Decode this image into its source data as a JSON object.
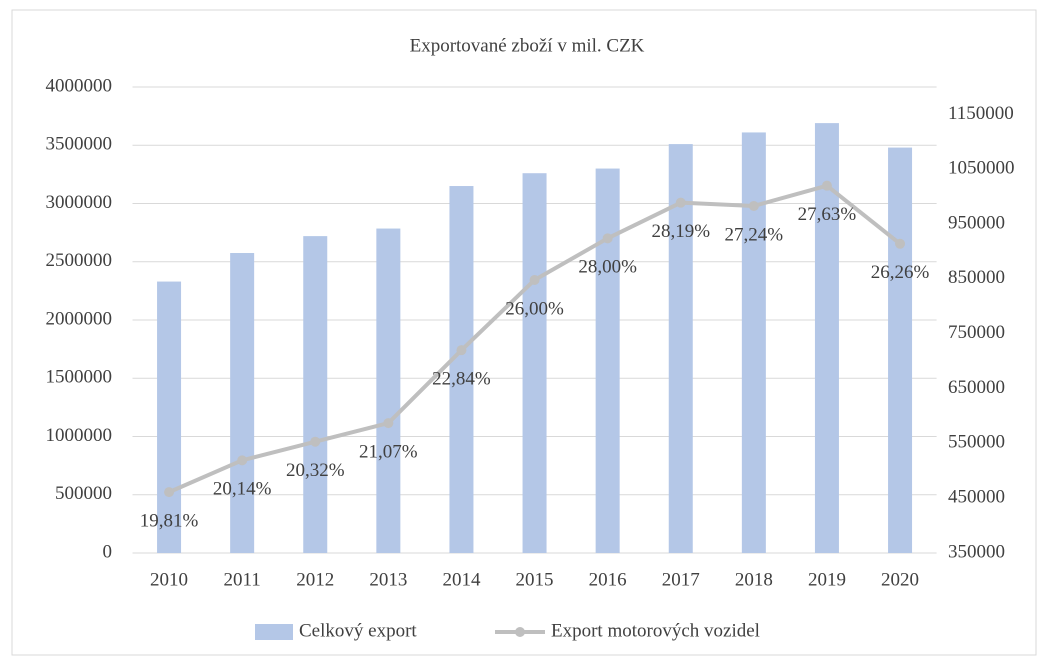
{
  "chart_data": {
    "type": "bar_line",
    "title": "Exportované zboží v mil. CZK",
    "categories": [
      "2010",
      "2011",
      "2012",
      "2013",
      "2014",
      "2015",
      "2016",
      "2017",
      "2018",
      "2019",
      "2020"
    ],
    "series": [
      {
        "name": "Celkový export",
        "type": "bar",
        "color": "#b4c7e7",
        "values": [
          2330000,
          2575000,
          2720000,
          2785000,
          3150000,
          3260000,
          3300000,
          3510000,
          3610000,
          3690000,
          3480000
        ]
      },
      {
        "name": "Export motorových vozidel",
        "type": "line",
        "axis": "y2",
        "color": "#bfbfbf",
        "values": [
          461000,
          519000,
          553000,
          587000,
          720000,
          848000,
          924000,
          989000,
          983000,
          1020000,
          914000
        ],
        "labels": [
          "19,81%",
          "20,14%",
          "20,32%",
          "21,07%",
          "22,84%",
          "26,00%",
          "28,00%",
          "28,19%",
          "27,24%",
          "27,63%",
          "26,26%"
        ]
      }
    ],
    "ylim": [
      0,
      4000000
    ],
    "yticks": [
      0,
      500000,
      1000000,
      1500000,
      2000000,
      2500000,
      3000000,
      3500000,
      4000000
    ],
    "y2lim": [
      350000,
      1200000
    ],
    "y2ticks": [
      350000,
      450000,
      550000,
      650000,
      750000,
      850000,
      950000,
      1050000,
      1150000
    ],
    "grid": true,
    "legend": "bottom"
  }
}
